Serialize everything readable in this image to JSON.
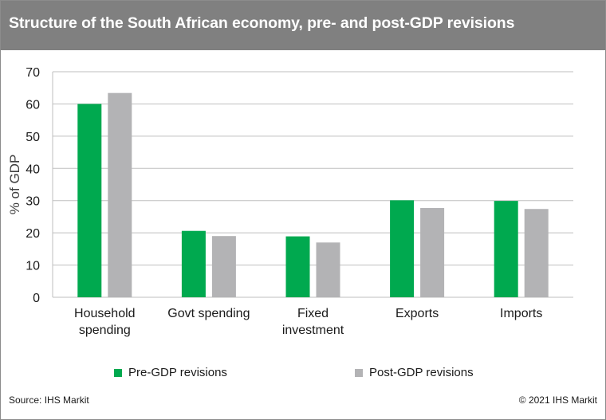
{
  "title": "Structure of the South African economy, pre- and post-GDP revisions",
  "colors": {
    "header_bg": "#808080",
    "pre": "#00a94f",
    "post": "#b3b3b5",
    "grid": "#bfbfbf"
  },
  "footer": {
    "source": "Source: IHS Markit",
    "copyright": "© 2021 IHS Markit"
  },
  "chart_data": {
    "type": "bar",
    "title": "Structure of the South African economy, pre- and post-GDP revisions",
    "ylabel": "% of GDP",
    "xlabel": "",
    "ylim": [
      0,
      70
    ],
    "yticks": [
      0,
      10,
      20,
      30,
      40,
      50,
      60,
      70
    ],
    "grid": true,
    "legend_position": "bottom",
    "categories": [
      [
        "Household",
        "spending"
      ],
      [
        "Govt spending"
      ],
      [
        "Fixed",
        "investment"
      ],
      [
        "Exports"
      ],
      [
        "Imports"
      ]
    ],
    "series": [
      {
        "name": "Pre-GDP revisions",
        "color": "#00a94f",
        "values": [
          60.0,
          20.6,
          18.9,
          30.1,
          29.9
        ]
      },
      {
        "name": "Post-GDP revisions",
        "color": "#b3b3b5",
        "values": [
          63.4,
          19.0,
          17.0,
          27.7,
          27.4
        ]
      }
    ]
  }
}
